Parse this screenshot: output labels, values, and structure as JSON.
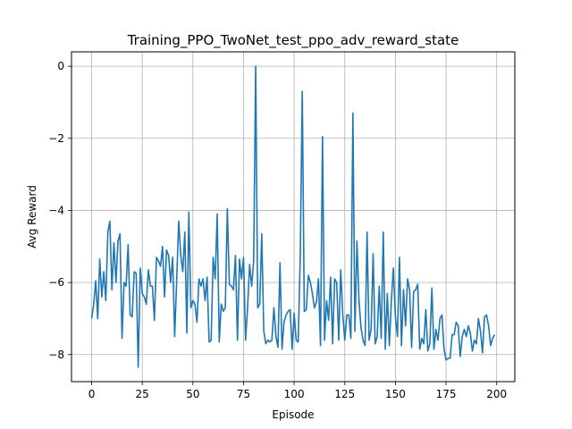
{
  "chart_data": {
    "type": "line",
    "title": "Training_PPO_TwoNet_test_ppo_adv_reward_state",
    "xlabel": "Episode",
    "ylabel": "Avg Reward",
    "xlim": [
      -9.95,
      208.95
    ],
    "ylim": [
      -8.75,
      0.4
    ],
    "x_ticks": [
      0,
      25,
      50,
      75,
      100,
      125,
      150,
      175,
      200
    ],
    "y_ticks": [
      0,
      -2,
      -4,
      -6,
      -8
    ],
    "grid": true,
    "legend": "none",
    "series": [
      {
        "color": "#1f77b4",
        "x_start": 0,
        "x_step": 1,
        "values": [
          -7.0,
          -6.6,
          -5.95,
          -7.0,
          -5.35,
          -6.4,
          -5.7,
          -6.5,
          -4.6,
          -4.3,
          -6.2,
          -4.9,
          -6.0,
          -4.85,
          -4.65,
          -7.55,
          -6.0,
          -6.1,
          -4.95,
          -6.9,
          -6.95,
          -5.7,
          -5.75,
          -8.35,
          -5.6,
          -6.3,
          -6.4,
          -6.6,
          -5.65,
          -6.1,
          -6.1,
          -7.05,
          -5.3,
          -5.4,
          -5.55,
          -5.0,
          -6.4,
          -5.1,
          -5.25,
          -6.0,
          -5.3,
          -7.5,
          -5.9,
          -4.3,
          -5.25,
          -5.7,
          -4.6,
          -7.4,
          -4.05,
          -6.7,
          -6.5,
          -6.6,
          -7.1,
          -5.9,
          -6.1,
          -5.9,
          -6.5,
          -5.85,
          -7.65,
          -7.6,
          -5.3,
          -5.9,
          -4.1,
          -7.65,
          -6.6,
          -6.8,
          -6.7,
          -3.95,
          -6.05,
          -6.1,
          -6.2,
          -5.25,
          -7.6,
          -5.35,
          -5.9,
          -5.3,
          -7.6,
          -6.7,
          -5.5,
          -6.1,
          -5.4,
          0.0,
          -6.7,
          -6.6,
          -4.65,
          -7.35,
          -7.7,
          -7.6,
          -7.65,
          -7.6,
          -6.7,
          -7.5,
          -7.8,
          -5.45,
          -7.85,
          -7.1,
          -6.9,
          -6.8,
          -6.75,
          -7.85,
          -6.85,
          -7.6,
          -7.65,
          -5.3,
          -0.7,
          -6.8,
          -6.75,
          -5.8,
          -6.0,
          -6.3,
          -6.7,
          -6.55,
          -5.9,
          -7.75,
          -1.95,
          -7.6,
          -6.5,
          -7.05,
          -5.85,
          -7.7,
          -5.9,
          -6.0,
          -7.6,
          -5.65,
          -6.9,
          -7.6,
          -6.9,
          -6.9,
          -7.55,
          -1.3,
          -7.35,
          -4.85,
          -6.5,
          -7.25,
          -7.6,
          -7.75,
          -4.6,
          -7.6,
          -7.3,
          -5.2,
          -7.7,
          -7.5,
          -6.1,
          -7.55,
          -4.6,
          -7.85,
          -6.3,
          -7.75,
          -6.5,
          -5.6,
          -6.95,
          -7.5,
          -5.3,
          -7.75,
          -6.2,
          -7.2,
          -5.9,
          -6.2,
          -7.8,
          -6.25,
          -6.2,
          -6.05,
          -7.85,
          -7.55,
          -7.7,
          -6.75,
          -7.9,
          -7.7,
          -6.15,
          -7.85,
          -7.3,
          -7.6,
          -7.0,
          -6.9,
          -7.85,
          -8.15,
          -8.1,
          -8.1,
          -7.45,
          -7.45,
          -7.1,
          -7.2,
          -8.05,
          -7.5,
          -7.3,
          -7.5,
          -7.2,
          -7.4,
          -7.9,
          -7.6,
          -7.7,
          -7.0,
          -7.35,
          -7.95,
          -6.95,
          -6.9,
          -7.2,
          -7.75,
          -7.55,
          -7.45
        ]
      }
    ]
  }
}
